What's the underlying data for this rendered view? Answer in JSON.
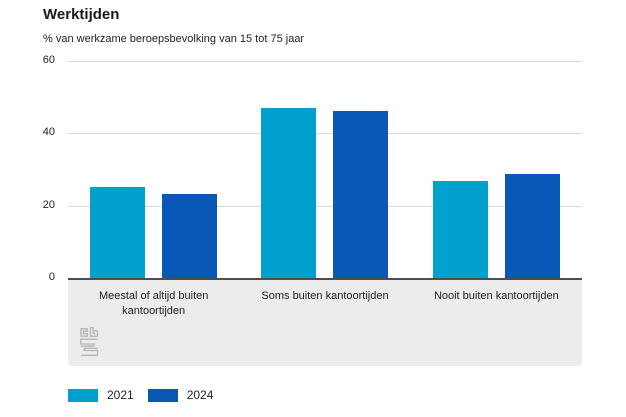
{
  "title": "Werktijden",
  "subtitle": "% van werkzame beroepsbevolking van 15 tot 75 jaar",
  "chart_data": {
    "type": "bar",
    "title": "Werktijden",
    "subtitle": "% van werkzame beroepsbevolking van 15 tot 75 jaar",
    "categories": [
      "Meestal of altijd buiten kantoortijden",
      "Soms buiten kantoortijden",
      "Nooit buiten kantoortijden"
    ],
    "series": [
      {
        "name": "2021",
        "color": "#00a1cd",
        "values": [
          25.1,
          47.0,
          26.9
        ]
      },
      {
        "name": "2024",
        "color": "#0a58b6",
        "values": [
          23.3,
          46.3,
          28.7
        ]
      }
    ],
    "xlabel": "",
    "ylabel": "",
    "ylim": [
      0,
      60
    ],
    "yticks": [
      0,
      20,
      40,
      60
    ],
    "grid": true,
    "legend_position": "bottom-left"
  },
  "legend": {
    "items": [
      {
        "label": "2021",
        "color": "#00a1cd"
      },
      {
        "label": "2024",
        "color": "#0a58b6"
      }
    ]
  },
  "logo": {
    "name": "cbs-logo"
  },
  "colors": {
    "accent_2021": "#00a1cd",
    "accent_2024": "#0a58b6",
    "gridline": "#d9d9d9",
    "axis_line": "#4d4d4d",
    "panel_background": "#ececec",
    "text": "#1a1a1a",
    "logo_gray": "#b5b5b5"
  }
}
